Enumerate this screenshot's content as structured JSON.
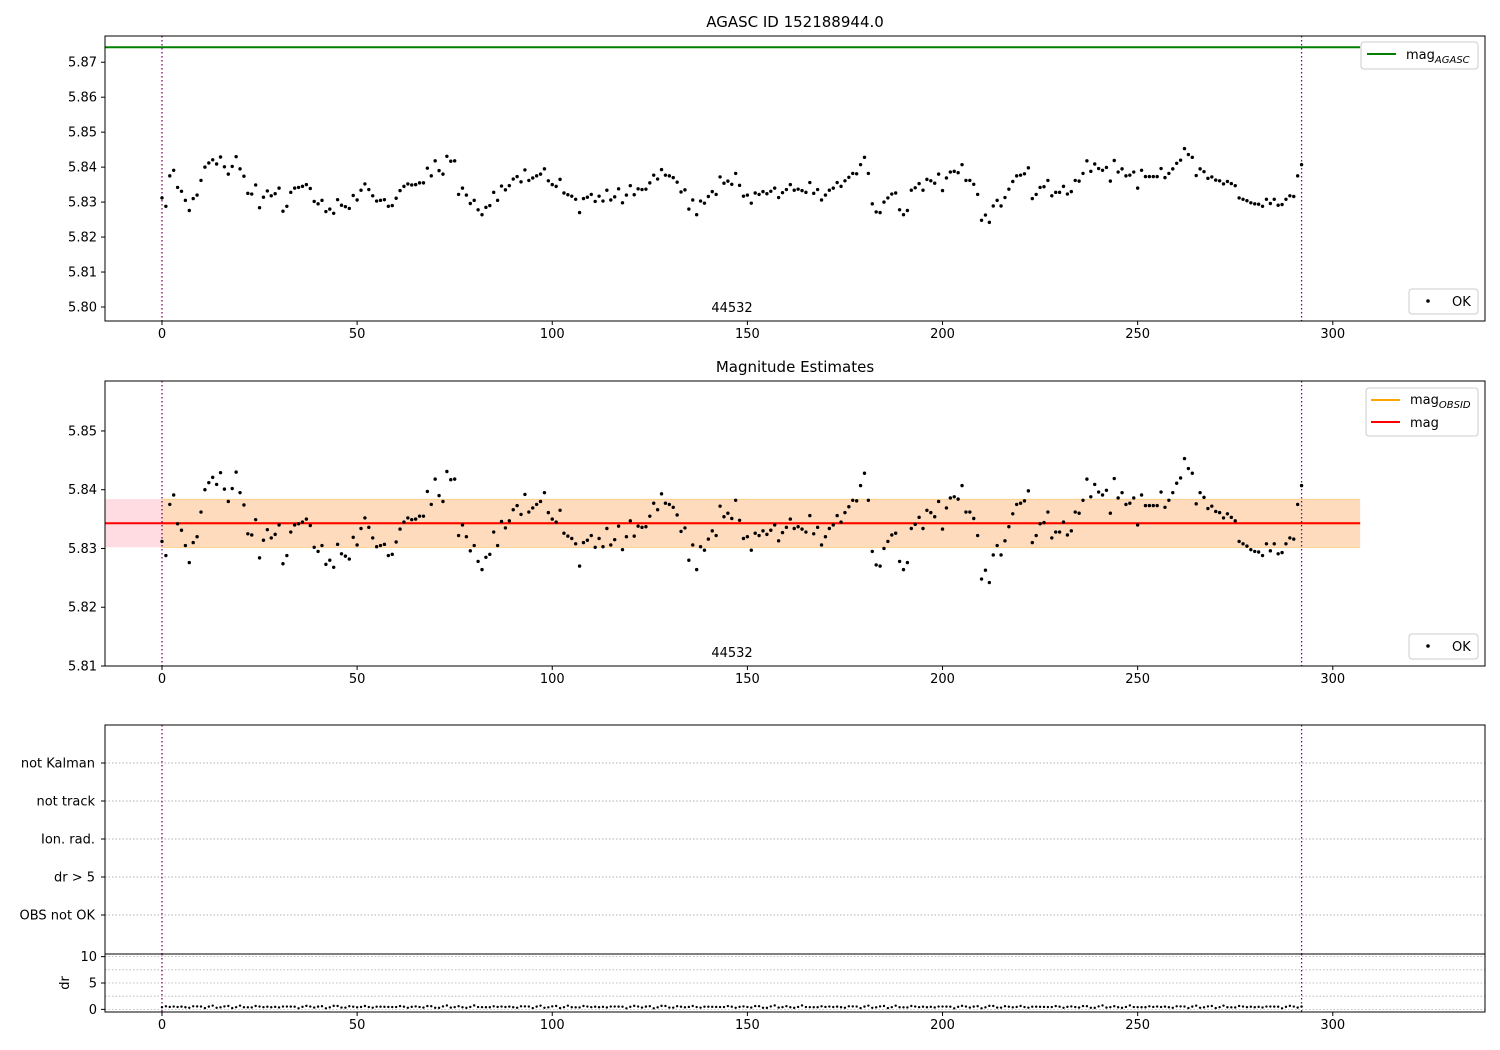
{
  "colors": {
    "points": "#000000",
    "agasc_line": "#008000",
    "obsid_line": "#ffa500",
    "mag_line": "#ff0000",
    "band_mag": "#ffc0cb",
    "band_obsid": "#ffdab9",
    "obs_boundary": "#800080",
    "grid": "#b0b0b0"
  },
  "chart_data": [
    {
      "type": "scatter",
      "title": "AGASC ID 152188944.0",
      "xlim": [
        -14.6,
        339
      ],
      "ylim": [
        5.796,
        5.8775
      ],
      "xticks": [
        0,
        50,
        100,
        150,
        200,
        250,
        300
      ],
      "yticks": [
        5.8,
        5.81,
        5.82,
        5.83,
        5.84,
        5.85,
        5.86,
        5.87
      ],
      "ytick_labels": [
        "5.80",
        "5.81",
        "5.82",
        "5.83",
        "5.84",
        "5.85",
        "5.86",
        "5.87"
      ],
      "obsid_label": "44532",
      "obs_boundaries": [
        0,
        292
      ],
      "series_source": "shared_mag_series",
      "mag_agasc": {
        "value": 5.8743,
        "x_range": [
          -14.6,
          307
        ]
      },
      "legend_upper": [
        {
          "label": "mag",
          "subscript": "AGASC",
          "kind": "line",
          "color": "agasc_line"
        }
      ],
      "legend_lower": [
        {
          "label": "OK",
          "kind": "point"
        }
      ]
    },
    {
      "type": "scatter",
      "title": "Magnitude Estimates",
      "xlim": [
        -14.6,
        339
      ],
      "ylim": [
        5.81,
        5.8585
      ],
      "xticks": [
        0,
        50,
        100,
        150,
        200,
        250,
        300
      ],
      "yticks": [
        5.81,
        5.82,
        5.83,
        5.84,
        5.85
      ],
      "ytick_labels": [
        "5.81",
        "5.82",
        "5.83",
        "5.84",
        "5.85"
      ],
      "obsid_label": "44532",
      "obs_boundaries": [
        0,
        292
      ],
      "series_source": "shared_mag_series",
      "mag": {
        "value": 5.8343,
        "band": [
          5.8302,
          5.8384
        ],
        "x_range": [
          -14.6,
          307
        ]
      },
      "mag_obsid": {
        "value": 5.8343,
        "band": [
          5.8302,
          5.8384
        ],
        "x_range": [
          0,
          307
        ]
      },
      "legend_upper": [
        {
          "label": "mag",
          "subscript": "OBSID",
          "kind": "line",
          "color": "obsid_line"
        },
        {
          "label": "mag",
          "subscript": "",
          "kind": "line",
          "color": "mag_line"
        }
      ],
      "legend_lower": [
        {
          "label": "OK",
          "kind": "point"
        }
      ]
    },
    {
      "type": "flags",
      "xlim": [
        -14.6,
        339
      ],
      "categories": [
        "not Kalman",
        "not track",
        "Ion. rad.",
        "dr > 5",
        "OBS not OK"
      ],
      "obs_boundaries": [
        0,
        292
      ],
      "flagged_points": []
    },
    {
      "type": "scatter",
      "xlim": [
        -14.6,
        339
      ],
      "ylim": [
        -0.5,
        10.5
      ],
      "xticks": [
        0,
        50,
        100,
        150,
        200,
        250,
        300
      ],
      "yticks": [
        0,
        5,
        10
      ],
      "ylabel": "dr",
      "obs_boundaries": [
        0,
        292
      ],
      "dr_profile": [
        0.4,
        0.5,
        0.3,
        0.3,
        0.4,
        0.4,
        0.2,
        0.3,
        0.5,
        0.4,
        0.3,
        0.2
      ],
      "dr_range": [
        0,
        292
      ]
    }
  ],
  "shared_mag_series": {
    "x_start": 0,
    "x_step": 1,
    "y": [
      5.8312,
      5.8288,
      5.8375,
      5.8391,
      5.8342,
      5.8331,
      5.8305,
      5.8276,
      5.831,
      5.832,
      5.8362,
      5.84,
      5.8412,
      5.8421,
      5.8409,
      5.8429,
      5.8401,
      5.838,
      5.8402,
      5.843,
      5.8395,
      5.8374,
      5.8325,
      5.8323,
      5.8349,
      5.8284,
      5.8314,
      5.8332,
      5.8318,
      5.8324,
      5.834,
      5.8274,
      5.8288,
      5.8328,
      5.834,
      5.8342,
      5.8345,
      5.835,
      5.8339,
      5.8302,
      5.8295,
      5.8305,
      5.8273,
      5.828,
      5.8268,
      5.8307,
      5.8291,
      5.8287,
      5.8282,
      5.8319,
      5.8306,
      5.8334,
      5.8352,
      5.8336,
      5.8318,
      5.8303,
      5.8305,
      5.8307,
      5.8288,
      5.829,
      5.8311,
      5.8333,
      5.8345,
      5.8352,
      5.8349,
      5.835,
      5.8355,
      5.8355,
      5.8397,
      5.8375,
      5.8418,
      5.839,
      5.838,
      5.8431,
      5.8417,
      5.8418,
      5.8322,
      5.834,
      5.832,
      5.8296,
      5.8305,
      5.8278,
      5.8264,
      5.8285,
      5.829,
      5.8328,
      5.8305,
      5.8346,
      5.8335,
      5.8347,
      5.8366,
      5.8373,
      5.8358,
      5.8392,
      5.8362,
      5.8369,
      5.8375,
      5.838,
      5.8395,
      5.8361,
      5.835,
      5.8345,
      5.8365,
      5.8326,
      5.8321,
      5.8317,
      5.8308,
      5.827,
      5.831,
      5.8314,
      5.8322,
      5.8302,
      5.8317,
      5.8303,
      5.8334,
      5.8306,
      5.8315,
      5.8338,
      5.8298,
      5.832,
      5.8347,
      5.8321,
      5.8338,
      5.8336,
      5.8337,
      5.8355,
      5.8377,
      5.8366,
      5.8393,
      5.8377,
      5.8375,
      5.837,
      5.8357,
      5.8329,
      5.8335,
      5.828,
      5.8306,
      5.8264,
      5.8303,
      5.8297,
      5.8316,
      5.833,
      5.8322,
      5.8372,
      5.8354,
      5.836,
      5.8351,
      5.8382,
      5.8348,
      5.8317,
      5.832,
      5.8297,
      5.8326,
      5.8322,
      5.833,
      5.8324,
      5.8331,
      5.834,
      5.8313,
      5.8327,
      5.8336,
      5.835,
      5.8334,
      5.8337,
      5.8333,
      5.8328,
      5.8356,
      5.8325,
      5.8336,
      5.8306,
      5.832,
      5.8334,
      5.834,
      5.8356,
      5.8345,
      5.8361,
      5.8371,
      5.8382,
      5.8381,
      5.8407,
      5.8428,
      5.8382,
      5.8295,
      5.8272,
      5.827,
      5.83,
      5.8312,
      5.8323,
      5.8326,
      5.8278,
      5.8264,
      5.8276,
      5.8334,
      5.8341,
      5.8353,
      5.8334,
      5.8365,
      5.8361,
      5.8354,
      5.838,
      5.8333,
      5.8369,
      5.8386,
      5.8388,
      5.8384,
      5.8407,
      5.8362,
      5.8362,
      5.8351,
      5.8322,
      5.8248,
      5.8263,
      5.8242,
      5.8289,
      5.8305,
      5.8289,
      5.8313,
      5.8337,
      5.8359,
      5.8375,
      5.8377,
      5.8381,
      5.8398,
      5.831,
      5.8322,
      5.8342,
      5.8344,
      5.8362,
      5.8318,
      5.8328,
      5.8328,
      5.8345,
      5.8323,
      5.833,
      5.8362,
      5.836,
      5.8382,
      5.8418,
      5.8388,
      5.8409,
      5.8396,
      5.8391,
      5.8399,
      5.836,
      5.8419,
      5.8386,
      5.8395,
      5.8375,
      5.8377,
      5.8386,
      5.834,
      5.8391,
      5.8373,
      5.8373,
      5.8373,
      5.8373,
      5.8396,
      5.837,
      5.8382,
      5.8395,
      5.8411,
      5.842,
      5.8453,
      5.8436,
      5.8428,
      5.8376,
      5.8395,
      5.8387,
      5.8368,
      5.8372,
      5.8363,
      5.8361,
      5.8352,
      5.8359,
      5.8353,
      5.8347,
      5.8312,
      5.8308,
      5.8304,
      5.8298,
      5.8295,
      5.8294,
      5.8288,
      5.8308,
      5.8296,
      5.8308,
      5.8291,
      5.8293,
      5.8308,
      5.8318,
      5.8316,
      5.8375,
      5.8407
    ]
  }
}
